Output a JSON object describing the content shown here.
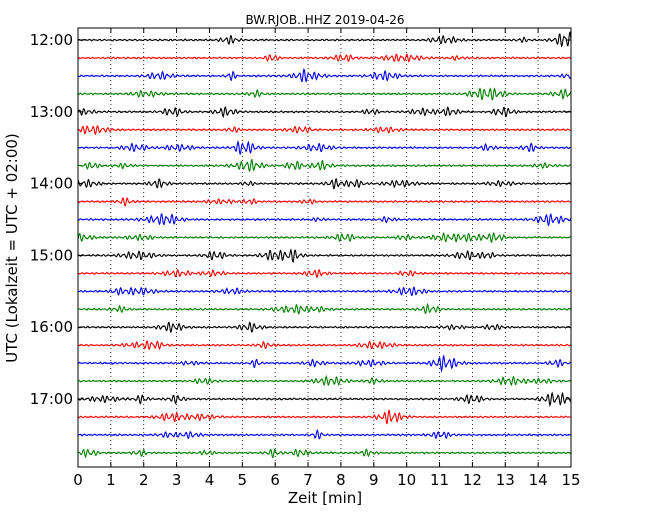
{
  "chart_data": {
    "type": "line",
    "title": "BW.RJOB..HHZ 2019-04-26",
    "xlabel": "Zeit  [min]",
    "ylabel": "UTC (Lokalzeit = UTC + 02:00)",
    "xlim": [
      0,
      15
    ],
    "x_ticks": [
      "0",
      "1",
      "2",
      "3",
      "4",
      "5",
      "6",
      "7",
      "8",
      "9",
      "10",
      "11",
      "12",
      "13",
      "14",
      "15"
    ],
    "y_tick_labels": [
      "12:00",
      "13:00",
      "14:00",
      "15:00",
      "16:00",
      "17:00"
    ],
    "trace_count": 24,
    "trace_minutes": 15,
    "grid": "vertical dotted",
    "colors": [
      "#000000",
      "#ff0000",
      "#0000ff",
      "#008000"
    ],
    "series": [
      {
        "start": "12:00"
      },
      {
        "start": "12:15"
      },
      {
        "start": "12:30"
      },
      {
        "start": "12:45"
      },
      {
        "start": "13:00"
      },
      {
        "start": "13:15"
      },
      {
        "start": "13:30"
      },
      {
        "start": "13:45"
      },
      {
        "start": "14:00"
      },
      {
        "start": "14:15"
      },
      {
        "start": "14:30"
      },
      {
        "start": "14:45"
      },
      {
        "start": "15:00"
      },
      {
        "start": "15:15"
      },
      {
        "start": "15:30"
      },
      {
        "start": "15:45"
      },
      {
        "start": "16:00"
      },
      {
        "start": "16:15"
      },
      {
        "start": "16:30"
      },
      {
        "start": "16:45"
      },
      {
        "start": "17:00"
      },
      {
        "start": "17:15"
      },
      {
        "start": "17:30"
      },
      {
        "start": "17:45"
      }
    ]
  }
}
